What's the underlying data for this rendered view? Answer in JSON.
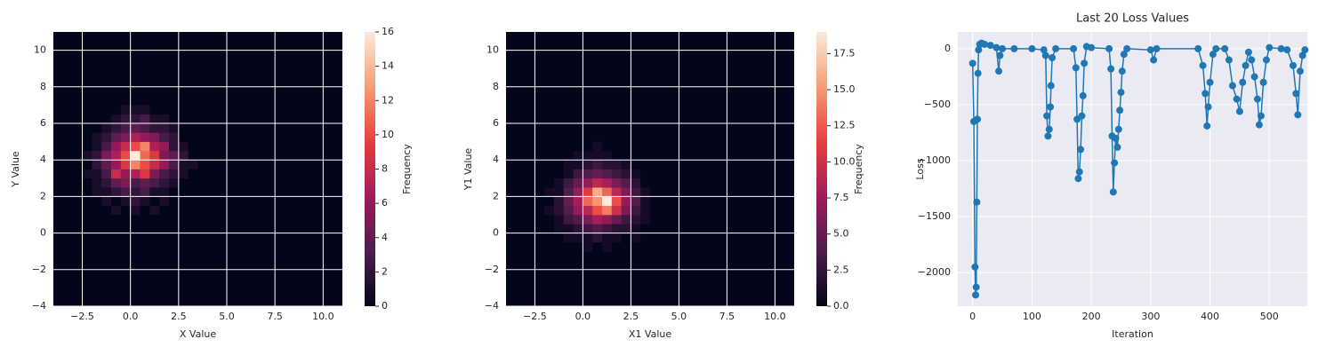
{
  "chart_data": [
    {
      "type": "histogram2d",
      "xlabel": "X Value",
      "ylabel": "Y Value",
      "colorbar_label": "Frequency",
      "xbins": [
        -2.5,
        -2,
        -1.5,
        -1,
        -0.5,
        0,
        0.5,
        1,
        1.5,
        2,
        2.5,
        3,
        3.5
      ],
      "ybins": [
        1,
        1.5,
        2,
        2.5,
        3,
        3.5,
        4,
        4.5,
        5,
        5.5,
        6,
        6.5,
        7
      ],
      "counts": [
        [
          0,
          0,
          0,
          1,
          0,
          1,
          0,
          1,
          0,
          0,
          0,
          0
        ],
        [
          0,
          0,
          1,
          0,
          1,
          2,
          1,
          0,
          1,
          0,
          0,
          0
        ],
        [
          0,
          1,
          1,
          2,
          3,
          2,
          3,
          1,
          1,
          0,
          0,
          0
        ],
        [
          0,
          1,
          2,
          4,
          5,
          3,
          4,
          3,
          2,
          1,
          0,
          0
        ],
        [
          1,
          1,
          3,
          8,
          6,
          7,
          9,
          5,
          3,
          2,
          1,
          0
        ],
        [
          0,
          2,
          4,
          6,
          9,
          12,
          10,
          8,
          6,
          3,
          1,
          1
        ],
        [
          1,
          2,
          5,
          7,
          10,
          16,
          11,
          9,
          5,
          4,
          2,
          0
        ],
        [
          0,
          1,
          3,
          6,
          8,
          10,
          12,
          7,
          6,
          2,
          1,
          0
        ],
        [
          0,
          1,
          2,
          4,
          5,
          7,
          6,
          5,
          3,
          2,
          0,
          0
        ],
        [
          0,
          0,
          1,
          2,
          3,
          4,
          3,
          2,
          2,
          1,
          0,
          0
        ],
        [
          0,
          0,
          0,
          1,
          2,
          2,
          3,
          1,
          1,
          0,
          0,
          0
        ],
        [
          0,
          0,
          0,
          0,
          1,
          1,
          1,
          0,
          0,
          0,
          0,
          0
        ]
      ],
      "xlim": [
        -4,
        11
      ],
      "ylim": [
        -4,
        11
      ],
      "xticks": [
        {
          "value": -2.5,
          "label": "−2.5"
        },
        {
          "value": 0,
          "label": "0.0"
        },
        {
          "value": 2.5,
          "label": "2.5"
        },
        {
          "value": 5,
          "label": "5.0"
        },
        {
          "value": 7.5,
          "label": "7.5"
        },
        {
          "value": 10,
          "label": "10.0"
        }
      ],
      "yticks": [
        {
          "value": -4,
          "label": "−4"
        },
        {
          "value": -2,
          "label": "−2"
        },
        0,
        2,
        4,
        6,
        8,
        10
      ],
      "clim": [
        0,
        16
      ],
      "cticks": [
        0,
        2,
        4,
        6,
        8,
        10,
        12,
        14,
        16
      ],
      "colormap": [
        "#03051a",
        "#4c1d4b",
        "#a11a5b",
        "#e83f3f",
        "#f69c73",
        "#faebdd"
      ],
      "grid": true
    },
    {
      "type": "histogram2d",
      "xlabel": "X1 Value",
      "ylabel": "Y1 Value",
      "colorbar_label": "Frequency",
      "xbins": [
        -2,
        -1.5,
        -1,
        -0.5,
        0,
        0.5,
        1,
        1.5,
        2,
        2.5,
        3,
        3.5,
        4
      ],
      "ybins": [
        -1,
        -0.5,
        0,
        0.5,
        1,
        1.5,
        2,
        2.5,
        3,
        3.5,
        4,
        4.5,
        5
      ],
      "counts": [
        [
          0,
          0,
          0,
          0,
          1,
          0,
          1,
          0,
          0,
          0,
          0,
          0
        ],
        [
          0,
          0,
          1,
          1,
          1,
          2,
          1,
          1,
          0,
          1,
          0,
          0
        ],
        [
          0,
          1,
          1,
          2,
          3,
          4,
          3,
          2,
          2,
          1,
          0,
          0
        ],
        [
          0,
          1,
          3,
          4,
          6,
          8,
          7,
          5,
          3,
          2,
          1,
          0
        ],
        [
          1,
          2,
          4,
          7,
          9,
          12,
          14,
          10,
          6,
          3,
          1,
          0
        ],
        [
          0,
          2,
          5,
          8,
          13,
          15,
          19,
          12,
          7,
          4,
          1,
          0
        ],
        [
          1,
          1,
          4,
          7,
          11,
          16,
          13,
          9,
          6,
          3,
          1,
          0
        ],
        [
          0,
          1,
          3,
          5,
          7,
          9,
          8,
          6,
          4,
          2,
          0,
          0
        ],
        [
          0,
          0,
          1,
          3,
          4,
          5,
          4,
          3,
          2,
          1,
          0,
          0
        ],
        [
          0,
          0,
          1,
          1,
          2,
          3,
          2,
          2,
          1,
          0,
          0,
          0
        ],
        [
          0,
          0,
          0,
          1,
          1,
          1,
          1,
          0,
          0,
          0,
          0,
          0
        ],
        [
          0,
          0,
          0,
          0,
          0,
          1,
          0,
          0,
          0,
          0,
          0,
          0
        ]
      ],
      "xlim": [
        -4,
        11
      ],
      "ylim": [
        -4,
        11
      ],
      "xticks": [
        {
          "value": -2.5,
          "label": "−2.5"
        },
        {
          "value": 0,
          "label": "0.0"
        },
        {
          "value": 2.5,
          "label": "2.5"
        },
        {
          "value": 5,
          "label": "5.0"
        },
        {
          "value": 7.5,
          "label": "7.5"
        },
        {
          "value": 10,
          "label": "10.0"
        }
      ],
      "yticks": [
        {
          "value": -4,
          "label": "−4"
        },
        {
          "value": -2,
          "label": "−2"
        },
        0,
        2,
        4,
        6,
        8,
        10
      ],
      "clim": [
        0,
        19
      ],
      "cticks": [
        {
          "value": 0,
          "label": "0.0"
        },
        2.5,
        {
          "value": 5,
          "label": "5.0"
        },
        7.5,
        {
          "value": 10,
          "label": "10.0"
        },
        12.5,
        {
          "value": 15,
          "label": "15.0"
        },
        17.5
      ],
      "colormap": [
        "#03051a",
        "#4c1d4b",
        "#a11a5b",
        "#e83f3f",
        "#f69c73",
        "#faebdd"
      ],
      "grid": true
    },
    {
      "type": "line",
      "title": "Last 20 Loss Values",
      "xlabel": "Iteration",
      "ylabel": "Loss",
      "color": "#1f77b4",
      "background": "#eaeaf2",
      "grid": true,
      "x": [
        0,
        2,
        4,
        5,
        6,
        7,
        8,
        9,
        10,
        12,
        15,
        20,
        30,
        40,
        44,
        46,
        50,
        70,
        100,
        120,
        123,
        125,
        127,
        129,
        131,
        132,
        134,
        140,
        170,
        174,
        176,
        178,
        180,
        182,
        184,
        186,
        188,
        192,
        200,
        230,
        233,
        235,
        237,
        239,
        241,
        244,
        246,
        248,
        250,
        252,
        255,
        260,
        300,
        305,
        310,
        380,
        388,
        392,
        395,
        397,
        400,
        405,
        410,
        425,
        432,
        438,
        445,
        450,
        455,
        460,
        465,
        470,
        475,
        480,
        483,
        486,
        490,
        495,
        500,
        520,
        530,
        540,
        545,
        548,
        552,
        556,
        560
      ],
      "values": [
        -130,
        -650,
        -1950,
        -2200,
        -2130,
        -1370,
        -630,
        -220,
        -10,
        40,
        50,
        40,
        30,
        10,
        -200,
        -60,
        0,
        0,
        0,
        -10,
        -60,
        -600,
        -780,
        -720,
        -520,
        -330,
        -80,
        0,
        0,
        -170,
        -630,
        -1160,
        -1100,
        -900,
        -600,
        -420,
        -130,
        20,
        10,
        0,
        -180,
        -780,
        -1280,
        -1020,
        -800,
        -880,
        -720,
        -550,
        -390,
        -200,
        -50,
        0,
        -10,
        -100,
        0,
        0,
        -150,
        -400,
        -690,
        -520,
        -300,
        -50,
        0,
        0,
        -100,
        -330,
        -450,
        -560,
        -300,
        -150,
        -30,
        -100,
        -250,
        -450,
        -680,
        -600,
        -300,
        -100,
        10,
        0,
        -10,
        -150,
        -400,
        -590,
        -200,
        -60,
        -10
      ],
      "xlim": [
        -25,
        564
      ],
      "ylim": [
        -2300,
        150
      ],
      "xticks": [
        0,
        100,
        200,
        300,
        400,
        500
      ],
      "yticks": [
        {
          "value": -2000,
          "label": "−2000"
        },
        {
          "value": -1500,
          "label": "−1500"
        },
        {
          "value": -1000,
          "label": "−1000"
        },
        {
          "value": -500,
          "label": "−500"
        },
        0
      ]
    }
  ]
}
